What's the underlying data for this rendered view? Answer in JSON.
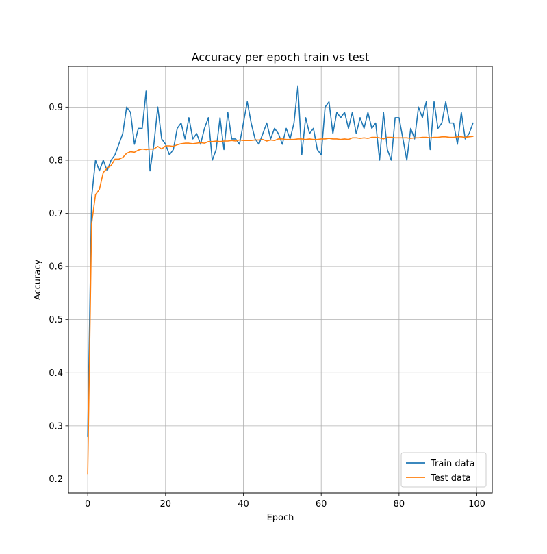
{
  "chart_data": {
    "type": "line",
    "title": "Accuracy per epoch train vs test",
    "xlabel": "Epoch",
    "ylabel": "Accuracy",
    "xlim": [
      -4.95,
      103.95
    ],
    "ylim": [
      0.1735,
      0.9765
    ],
    "xticks": [
      0,
      20,
      40,
      60,
      80,
      100
    ],
    "yticks": [
      0.2,
      0.3,
      0.4,
      0.5,
      0.6,
      0.7,
      0.8,
      0.9
    ],
    "xtick_labels": [
      "0",
      "20",
      "40",
      "60",
      "80",
      "100"
    ],
    "ytick_labels": [
      "0.2",
      "0.3",
      "0.4",
      "0.5",
      "0.6",
      "0.7",
      "0.8",
      "0.9"
    ],
    "grid": true,
    "legend_position": "lower-right",
    "series": [
      {
        "name": "Train data",
        "color": "#1f77b4",
        "x": [
          0,
          1,
          2,
          3,
          4,
          5,
          6,
          7,
          8,
          9,
          10,
          11,
          12,
          13,
          14,
          15,
          16,
          17,
          18,
          19,
          20,
          21,
          22,
          23,
          24,
          25,
          26,
          27,
          28,
          29,
          30,
          31,
          32,
          33,
          34,
          35,
          36,
          37,
          38,
          39,
          40,
          41,
          42,
          43,
          44,
          45,
          46,
          47,
          48,
          49,
          50,
          51,
          52,
          53,
          54,
          55,
          56,
          57,
          58,
          59,
          60,
          61,
          62,
          63,
          64,
          65,
          66,
          67,
          68,
          69,
          70,
          71,
          72,
          73,
          74,
          75,
          76,
          77,
          78,
          79,
          80,
          81,
          82,
          83,
          84,
          85,
          86,
          87,
          88,
          89,
          90,
          91,
          92,
          93,
          94,
          95,
          96,
          97,
          98,
          99
        ],
        "values": [
          0.28,
          0.73,
          0.8,
          0.78,
          0.8,
          0.78,
          0.8,
          0.81,
          0.83,
          0.85,
          0.9,
          0.89,
          0.83,
          0.86,
          0.86,
          0.93,
          0.78,
          0.83,
          0.9,
          0.84,
          0.83,
          0.81,
          0.82,
          0.86,
          0.87,
          0.84,
          0.88,
          0.84,
          0.85,
          0.83,
          0.86,
          0.88,
          0.8,
          0.82,
          0.88,
          0.82,
          0.89,
          0.84,
          0.84,
          0.83,
          0.87,
          0.91,
          0.87,
          0.84,
          0.83,
          0.85,
          0.87,
          0.84,
          0.86,
          0.85,
          0.83,
          0.86,
          0.84,
          0.87,
          0.94,
          0.81,
          0.88,
          0.85,
          0.86,
          0.82,
          0.81,
          0.9,
          0.91,
          0.85,
          0.89,
          0.88,
          0.89,
          0.86,
          0.89,
          0.85,
          0.88,
          0.86,
          0.89,
          0.86,
          0.87,
          0.8,
          0.89,
          0.82,
          0.8,
          0.88,
          0.88,
          0.84,
          0.8,
          0.86,
          0.84,
          0.9,
          0.88,
          0.91,
          0.82,
          0.91,
          0.86,
          0.87,
          0.91,
          0.87,
          0.87,
          0.83,
          0.89,
          0.84,
          0.85,
          0.87
        ]
      },
      {
        "name": "Test data",
        "color": "#ff7f0e",
        "x": [
          0,
          1,
          2,
          3,
          4,
          5,
          6,
          7,
          8,
          9,
          10,
          11,
          12,
          13,
          14,
          15,
          16,
          17,
          18,
          19,
          20,
          21,
          22,
          23,
          24,
          25,
          26,
          27,
          28,
          29,
          30,
          31,
          32,
          33,
          34,
          35,
          36,
          37,
          38,
          39,
          40,
          41,
          42,
          43,
          44,
          45,
          46,
          47,
          48,
          49,
          50,
          51,
          52,
          53,
          54,
          55,
          56,
          57,
          58,
          59,
          60,
          61,
          62,
          63,
          64,
          65,
          66,
          67,
          68,
          69,
          70,
          71,
          72,
          73,
          74,
          75,
          76,
          77,
          78,
          79,
          80,
          81,
          82,
          83,
          84,
          85,
          86,
          87,
          88,
          89,
          90,
          91,
          92,
          93,
          94,
          95,
          96,
          97,
          98,
          99
        ],
        "values": [
          0.21,
          0.68,
          0.735,
          0.745,
          0.777,
          0.785,
          0.79,
          0.802,
          0.802,
          0.805,
          0.813,
          0.816,
          0.815,
          0.819,
          0.821,
          0.82,
          0.821,
          0.821,
          0.826,
          0.821,
          0.827,
          0.827,
          0.826,
          0.829,
          0.831,
          0.832,
          0.832,
          0.831,
          0.832,
          0.833,
          0.832,
          0.835,
          0.835,
          0.836,
          0.835,
          0.836,
          0.836,
          0.837,
          0.836,
          0.838,
          0.837,
          0.837,
          0.837,
          0.838,
          0.838,
          0.839,
          0.836,
          0.838,
          0.837,
          0.84,
          0.84,
          0.839,
          0.839,
          0.839,
          0.84,
          0.84,
          0.839,
          0.84,
          0.839,
          0.839,
          0.84,
          0.84,
          0.841,
          0.84,
          0.84,
          0.839,
          0.84,
          0.839,
          0.842,
          0.842,
          0.841,
          0.842,
          0.841,
          0.843,
          0.843,
          0.842,
          0.84,
          0.843,
          0.843,
          0.842,
          0.842,
          0.842,
          0.842,
          0.841,
          0.842,
          0.842,
          0.843,
          0.843,
          0.842,
          0.843,
          0.843,
          0.844,
          0.844,
          0.843,
          0.843,
          0.844,
          0.844,
          0.843,
          0.844,
          0.845
        ]
      }
    ]
  }
}
